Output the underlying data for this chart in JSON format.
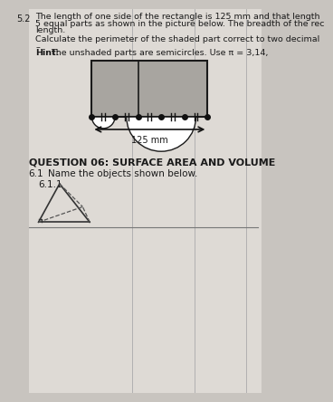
{
  "bg_color": "#c8c4bf",
  "paper_color": "#dedad5",
  "text_color": "#1a1a1a",
  "section_label": "5.2",
  "line1": "The length of one side of the rectangle is 125 mm and that length",
  "line2": "5 equal parts as shown in the picture below. The breadth of the rec",
  "line3": "length.",
  "line4": "Calculate the perimeter of the shaded part correct to two decimal",
  "line5": "–",
  "line6": "Hint: The unshaded parts are semicircles. Use π = 3,14,",
  "rect_fill": "#a8a5a0",
  "rect_border": "#1a1a1a",
  "white": "#ffffff",
  "dot_color": "#111111",
  "arrow_color": "#111111",
  "dim_label": "125 mm",
  "q6_label": "QUESTION 06: SURFACE AREA AND VOLUME",
  "q61_label": "6.1",
  "q61_text": "Name the objects shown below.",
  "q611_label": "6.1.1",
  "vline_color": "#aaaaaa",
  "hline_color": "#777777",
  "pyramid_color": "#333333",
  "pyramid_dash": "#555555"
}
